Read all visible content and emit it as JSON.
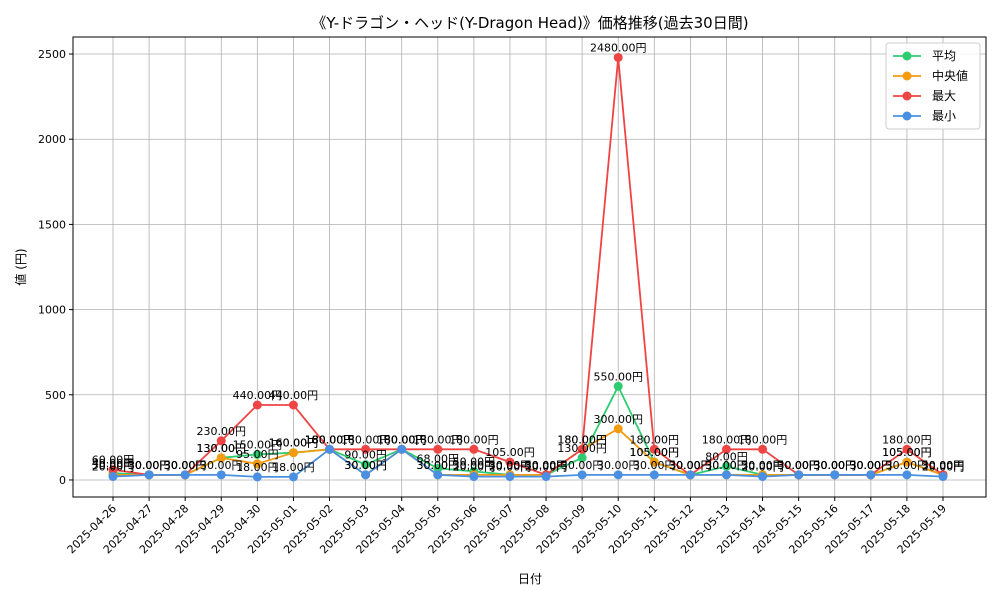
{
  "chart_data": {
    "type": "line",
    "title": "《Y-ドラゴン・ヘッド(Y-Dragon Head)》価格推移(過去30日間)",
    "xlabel": "日付",
    "ylabel": "値 (円)",
    "ylim": [
      -100,
      2600
    ],
    "yticks": [
      0,
      500,
      1000,
      1500,
      2000,
      2500
    ],
    "grid": true,
    "legend_position": "top-right",
    "label_suffix": "円",
    "categories": [
      "2025-04-26",
      "2025-04-27",
      "2025-04-28",
      "2025-04-29",
      "2025-04-30",
      "2025-05-01",
      "2025-05-02",
      "2025-05-03",
      "2025-05-04",
      "2025-05-05",
      "2025-05-06",
      "2025-05-07",
      "2025-05-08",
      "2025-05-09",
      "2025-05-10",
      "2025-05-11",
      "2025-05-12",
      "2025-05-13",
      "2025-05-14",
      "2025-05-15",
      "2025-05-16",
      "2025-05-17",
      "2025-05-18",
      "2025-05-19"
    ],
    "series": [
      {
        "name": "平均",
        "color": "#2ecc71",
        "values": [
          40,
          30,
          30,
          130,
          150,
          160,
          180,
          90,
          180,
          68,
          50,
          30,
          30,
          130,
          550,
          105,
          30,
          80,
          30,
          30,
          30,
          30,
          105,
          30
        ]
      },
      {
        "name": "中央値",
        "color": "#f39c12",
        "values": [
          30,
          30,
          30,
          130,
          95,
          160,
          180,
          30,
          180,
          30,
          30,
          30,
          30,
          180,
          300,
          105,
          30,
          30,
          30,
          30,
          30,
          30,
          105,
          30
        ]
      },
      {
        "name": "最大",
        "color": "#ef4444",
        "values": [
          60,
          30,
          30,
          230,
          440,
          440,
          180,
          180,
          180,
          180,
          180,
          105,
          30,
          180,
          2480,
          180,
          30,
          180,
          180,
          30,
          30,
          30,
          180,
          30
        ]
      },
      {
        "name": "最小",
        "color": "#4a90e2",
        "values": [
          20,
          30,
          30,
          30,
          18,
          18,
          180,
          30,
          180,
          30,
          20,
          20,
          20,
          30,
          30,
          30,
          30,
          30,
          20,
          30,
          30,
          30,
          30,
          20
        ]
      }
    ]
  }
}
